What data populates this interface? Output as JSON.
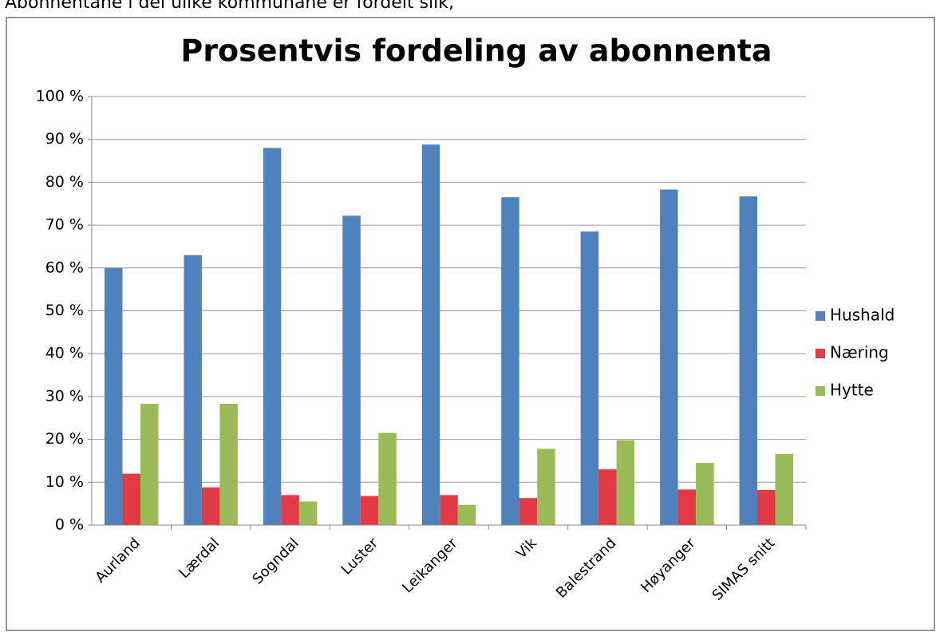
{
  "caption": "Abonnentane i dei ulike kommunane er fordelt slik,",
  "chart_data": {
    "type": "bar",
    "title": "Prosentvis fordeling av abonnenta",
    "categories": [
      "Aurland",
      "Lærdal",
      "Sogndal",
      "Luster",
      "Leikanger",
      "Vik",
      "Balestrand",
      "Høyanger",
      "SIMAS snitt"
    ],
    "series": [
      {
        "name": "Hushald",
        "color": "#4f81bd",
        "values": [
          60,
          63,
          88,
          72.2,
          88.8,
          76.5,
          68.5,
          78.3,
          76.7
        ]
      },
      {
        "name": "Næring",
        "color": "#e03a45",
        "values": [
          12,
          8.8,
          7,
          6.8,
          7,
          6.3,
          13,
          8.3,
          8.2
        ]
      },
      {
        "name": "Hytte",
        "color": "#9bbb59",
        "values": [
          28.3,
          28.3,
          5.5,
          21.5,
          4.7,
          17.8,
          19.8,
          14.5,
          16.6
        ]
      }
    ],
    "ylim": [
      0,
      100
    ],
    "yticks": [
      {
        "value": 0,
        "label": "0 %"
      },
      {
        "value": 10,
        "label": "10 %"
      },
      {
        "value": 20,
        "label": "20 %"
      },
      {
        "value": 30,
        "label": "30 %"
      },
      {
        "value": 40,
        "label": "40 %"
      },
      {
        "value": 50,
        "label": "50 %"
      },
      {
        "value": 60,
        "label": "60 %"
      },
      {
        "value": 70,
        "label": "70 %"
      },
      {
        "value": 80,
        "label": "80 %"
      },
      {
        "value": 90,
        "label": "90 %"
      },
      {
        "value": 100,
        "label": "100 %"
      }
    ],
    "grid": true,
    "legend": "right"
  }
}
